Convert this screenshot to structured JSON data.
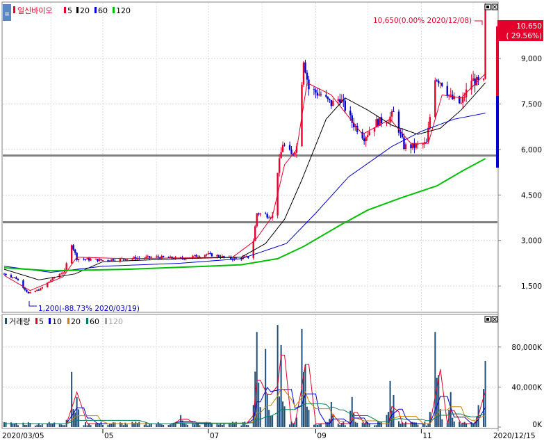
{
  "price_panel": {
    "stock_name": "일신바이오",
    "ma_legend": [
      {
        "label": "5",
        "color": "#e4002b"
      },
      {
        "label": "20",
        "color": "#000000"
      },
      {
        "label": "60",
        "color": "#0000d0"
      },
      {
        "label": "120",
        "color": "#00c000"
      }
    ],
    "high_annotation": "10,650(0.00% 2020/12/08)",
    "low_annotation": "1,200(-88.73% 2020/03/19)",
    "current_price": "10,650",
    "current_change": "( 29.56%)",
    "y_ticks": [
      {
        "value": 9000,
        "label": "9,000"
      },
      {
        "value": 7500,
        "label": "7,500"
      },
      {
        "value": 6000,
        "label": "6,000"
      },
      {
        "value": 4500,
        "label": "4,500"
      },
      {
        "value": 3000,
        "label": "3,000"
      },
      {
        "value": 1500,
        "label": "1,500"
      }
    ],
    "horizontal_lines": [
      5800,
      3600
    ]
  },
  "volume_panel": {
    "title": "거래량",
    "legend": [
      {
        "label": "5",
        "color": "#e4002b"
      },
      {
        "label": "10",
        "color": "#0000d0"
      },
      {
        "label": "20",
        "color": "#d08000"
      },
      {
        "label": "60",
        "color": "#008060"
      },
      {
        "label": "120",
        "color": "#a0a0a0"
      }
    ],
    "y_ticks": [
      {
        "value": 80000,
        "label": "80,000K"
      },
      {
        "value": 40000,
        "label": "40,000K"
      },
      {
        "value": 0,
        "label": "0K"
      }
    ]
  },
  "x_axis": {
    "start_label": "2020/03/05",
    "end_label": "2020/12/15",
    "month_labels": [
      "05",
      "07",
      "09",
      "11"
    ]
  },
  "colors": {
    "up": "#e4002b",
    "down": "#0000d0",
    "ma5": "#e4002b",
    "ma20": "#000000",
    "ma60": "#0000d0",
    "ma120": "#00c000"
  },
  "chart_data": {
    "type": "candlestick",
    "x_range": [
      "2020-03-05",
      "2020-12-15"
    ],
    "price_ylim": [
      700,
      10700
    ],
    "volume_ylim": [
      0,
      100000
    ],
    "price_keypoints": [
      [
        "2020-03-05",
        1900
      ],
      [
        "2020-03-12",
        1750
      ],
      [
        "2020-03-19",
        1250
      ],
      [
        "2020-03-26",
        1400
      ],
      [
        "2020-04-02",
        1750
      ],
      [
        "2020-04-09",
        2000
      ],
      [
        "2020-04-13",
        2900
      ],
      [
        "2020-04-16",
        2400
      ],
      [
        "2020-04-30",
        2350
      ],
      [
        "2020-05-15",
        2400
      ],
      [
        "2020-06-01",
        2450
      ],
      [
        "2020-06-15",
        2400
      ],
      [
        "2020-06-30",
        2550
      ],
      [
        "2020-07-15",
        2400
      ],
      [
        "2020-07-24",
        2450
      ],
      [
        "2020-07-27",
        3000
      ],
      [
        "2020-07-29",
        3900
      ],
      [
        "2020-08-07",
        3800
      ],
      [
        "2020-08-10",
        5300
      ],
      [
        "2020-08-13",
        6200
      ],
      [
        "2020-08-18",
        5800
      ],
      [
        "2020-08-21",
        6100
      ],
      [
        "2020-08-25",
        9000
      ],
      [
        "2020-08-28",
        8000
      ],
      [
        "2020-09-04",
        7800
      ],
      [
        "2020-09-10",
        7500
      ],
      [
        "2020-09-15",
        7700
      ],
      [
        "2020-09-22",
        6900
      ],
      [
        "2020-09-29",
        6400
      ],
      [
        "2020-10-06",
        6900
      ],
      [
        "2020-10-13",
        7000
      ],
      [
        "2020-10-16",
        7200
      ],
      [
        "2020-10-22",
        6100
      ],
      [
        "2020-10-28",
        6100
      ],
      [
        "2020-11-04",
        6200
      ],
      [
        "2020-11-09",
        8400
      ],
      [
        "2020-11-13",
        8200
      ],
      [
        "2020-11-18",
        7700
      ],
      [
        "2020-11-24",
        7500
      ],
      [
        "2020-11-30",
        8300
      ],
      [
        "2020-12-04",
        8200
      ],
      [
        "2020-12-07",
        8200
      ],
      [
        "2020-12-08",
        10650
      ]
    ],
    "ma_series": [
      {
        "name": "5",
        "points": [
          [
            "2020-03-05",
            1850
          ],
          [
            "2020-03-20",
            1350
          ],
          [
            "2020-04-08",
            1800
          ],
          [
            "2020-04-16",
            2450
          ],
          [
            "2020-05-15",
            2400
          ],
          [
            "2020-07-15",
            2450
          ],
          [
            "2020-07-28",
            3000
          ],
          [
            "2020-08-07",
            3800
          ],
          [
            "2020-08-14",
            5500
          ],
          [
            "2020-08-21",
            6000
          ],
          [
            "2020-08-27",
            8200
          ],
          [
            "2020-09-10",
            7800
          ],
          [
            "2020-09-28",
            6500
          ],
          [
            "2020-10-14",
            7000
          ],
          [
            "2020-10-26",
            6200
          ],
          [
            "2020-11-05",
            6200
          ],
          [
            "2020-11-13",
            7800
          ],
          [
            "2020-11-24",
            7700
          ],
          [
            "2020-12-08",
            8500
          ]
        ]
      },
      {
        "name": "20",
        "points": [
          [
            "2020-03-05",
            2050
          ],
          [
            "2020-03-25",
            1700
          ],
          [
            "2020-04-15",
            1900
          ],
          [
            "2020-05-01",
            2300
          ],
          [
            "2020-06-15",
            2400
          ],
          [
            "2020-07-20",
            2450
          ],
          [
            "2020-08-03",
            2900
          ],
          [
            "2020-08-14",
            3700
          ],
          [
            "2020-08-24",
            5000
          ],
          [
            "2020-09-07",
            7000
          ],
          [
            "2020-09-18",
            7700
          ],
          [
            "2020-10-01",
            7300
          ],
          [
            "2020-10-15",
            6800
          ],
          [
            "2020-10-30",
            6500
          ],
          [
            "2020-11-12",
            6700
          ],
          [
            "2020-11-24",
            7300
          ],
          [
            "2020-12-08",
            8200
          ]
        ]
      },
      {
        "name": "60",
        "points": [
          [
            "2020-03-05",
            2150
          ],
          [
            "2020-04-01",
            1950
          ],
          [
            "2020-05-01",
            2150
          ],
          [
            "2020-06-15",
            2250
          ],
          [
            "2020-07-20",
            2400
          ],
          [
            "2020-08-15",
            2900
          ],
          [
            "2020-09-01",
            3900
          ],
          [
            "2020-09-20",
            5100
          ],
          [
            "2020-10-15",
            6100
          ],
          [
            "2020-11-01",
            6600
          ],
          [
            "2020-11-20",
            7000
          ],
          [
            "2020-12-08",
            7200
          ]
        ]
      },
      {
        "name": "120",
        "points": [
          [
            "2020-03-05",
            2100
          ],
          [
            "2020-04-01",
            2000
          ],
          [
            "2020-05-15",
            2050
          ],
          [
            "2020-06-30",
            2150
          ],
          [
            "2020-07-20",
            2200
          ],
          [
            "2020-08-10",
            2400
          ],
          [
            "2020-08-25",
            2800
          ],
          [
            "2020-09-15",
            3500
          ],
          [
            "2020-10-01",
            4000
          ],
          [
            "2020-10-20",
            4400
          ],
          [
            "2020-11-10",
            4800
          ],
          [
            "2020-11-25",
            5300
          ],
          [
            "2020-12-08",
            5700
          ]
        ]
      }
    ],
    "volume_spikes": [
      [
        "2020-04-13",
        55000
      ],
      [
        "2020-04-16",
        30000
      ],
      [
        "2020-06-15",
        12000
      ],
      [
        "2020-07-27",
        22000
      ],
      [
        "2020-07-29",
        95000
      ],
      [
        "2020-08-03",
        78000
      ],
      [
        "2020-08-10",
        102000
      ],
      [
        "2020-08-12",
        82000
      ],
      [
        "2020-08-24",
        98000
      ],
      [
        "2020-08-26",
        62000
      ],
      [
        "2020-09-10",
        25000
      ],
      [
        "2020-09-22",
        30000
      ],
      [
        "2020-10-14",
        46000
      ],
      [
        "2020-10-16",
        32000
      ],
      [
        "2020-11-09",
        95000
      ],
      [
        "2020-11-11",
        52000
      ],
      [
        "2020-11-18",
        35000
      ],
      [
        "2020-12-04",
        22000
      ],
      [
        "2020-12-08",
        66000
      ]
    ]
  }
}
